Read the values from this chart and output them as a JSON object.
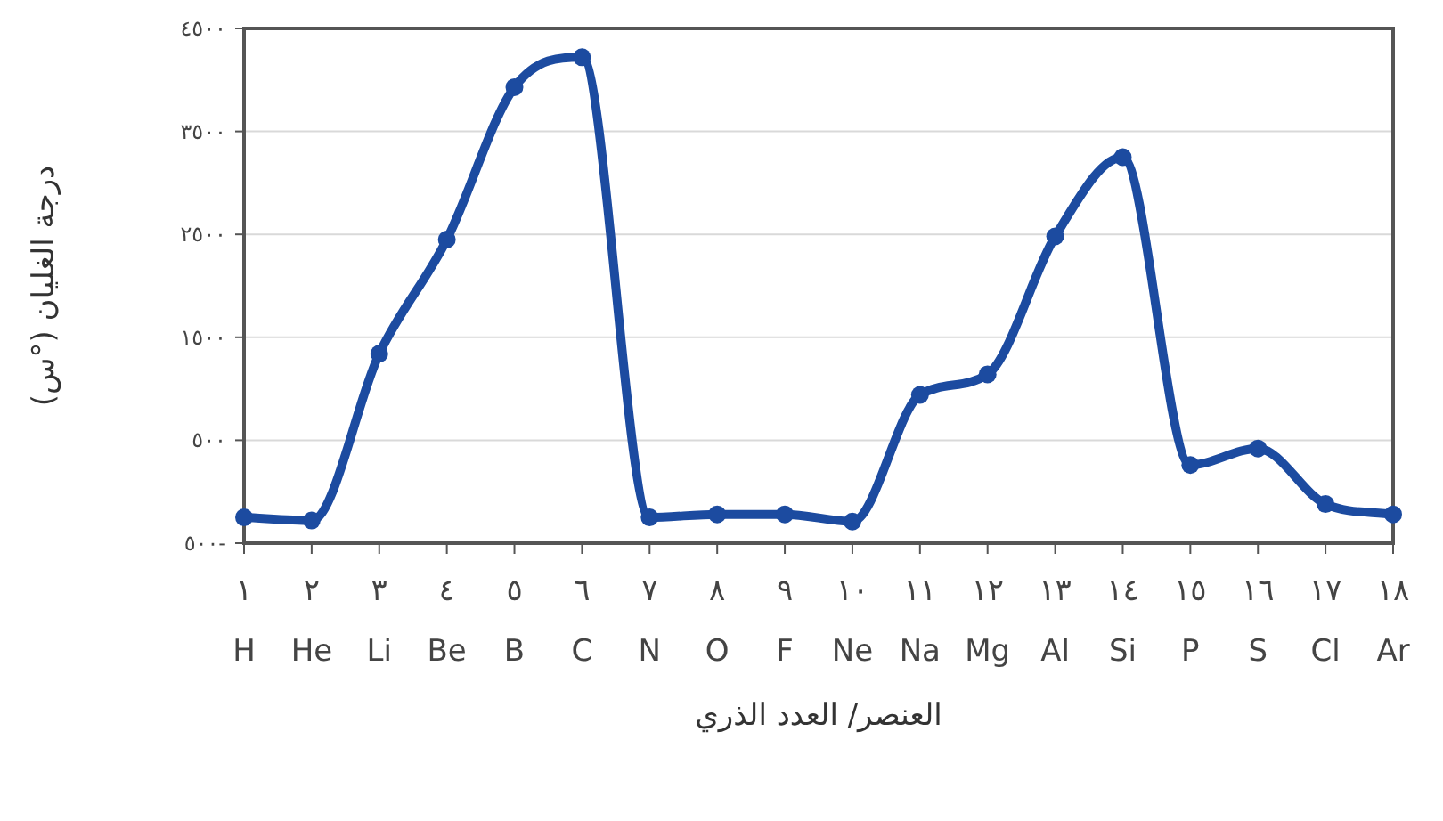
{
  "chart_data": {
    "type": "line",
    "xlabel": "العنصر/ العدد الذري",
    "ylabel": "درجة الغليان (°س)",
    "categories": [
      "١\nH",
      "٢\nHe",
      "٣\nLi",
      "٤\nBe",
      "٥\nB",
      "٦\nC",
      "٧\nN",
      "٨\nO",
      "٩\nF",
      "١٠\nNe",
      "١١\nNa",
      "١٢\nMg",
      "١٣\nAl",
      "١٤\nSi",
      "١٥\nP",
      "١٦\nS",
      "١٧\nCl",
      "١٨\nAr"
    ],
    "series": [
      {
        "color": "#1c4ba0",
        "values": [
          -250,
          -280,
          1340,
          2450,
          3930,
          4220,
          -250,
          -220,
          -220,
          -290,
          940,
          1140,
          2480,
          3250,
          260,
          420,
          -120,
          -220
        ]
      }
    ],
    "ylim": [
      -500,
      4500
    ],
    "yticks": [
      {
        "value": -500,
        "label": "٥٠٠-"
      },
      {
        "value": 500,
        "label": "٥٠٠"
      },
      {
        "value": 1500,
        "label": "١٥٠٠"
      },
      {
        "value": 2500,
        "label": "٢٥٠٠"
      },
      {
        "value": 3500,
        "label": "٣٥٠٠"
      },
      {
        "value": 4500,
        "label": "٤٥٠٠"
      }
    ],
    "grid": "y",
    "marker": "circle",
    "line_style": "solid"
  }
}
